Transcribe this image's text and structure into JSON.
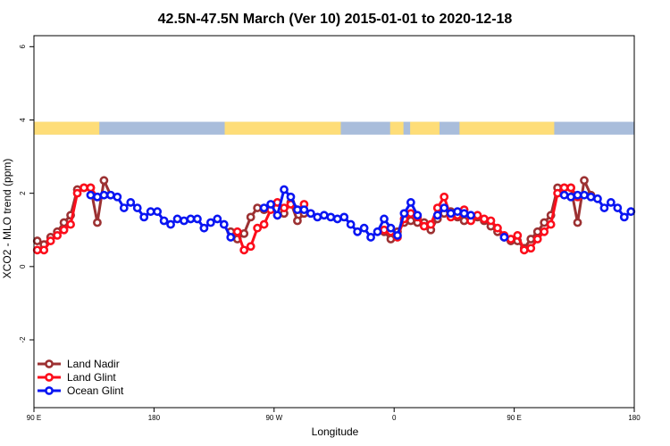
{
  "chart_data": {
    "type": "line",
    "title": "42.5N-47.5N March (Ver 10)   2015-01-01 to 2020-12-18",
    "xlabel": "Longitude",
    "ylabel": "XCO2 - MLO trend (ppm)",
    "xlim": [
      90,
      540
    ],
    "ylim": [
      -3.85,
      6.3
    ],
    "x_ticks": [
      {
        "value": 90,
        "label": "90 E"
      },
      {
        "value": 180,
        "label": "180"
      },
      {
        "value": 270,
        "label": "90 W"
      },
      {
        "value": 360,
        "label": "0"
      },
      {
        "value": 450,
        "label": "90 E"
      },
      {
        "value": 540,
        "label": "180"
      }
    ],
    "y_ticks": [
      {
        "value": -2,
        "label": "-2"
      },
      {
        "value": 0,
        "label": "0"
      },
      {
        "value": 2,
        "label": "2"
      },
      {
        "value": 4,
        "label": "4"
      },
      {
        "value": 6,
        "label": "6"
      }
    ],
    "land_mask_band": {
      "y_range": [
        3.6,
        3.95
      ],
      "land_color": "#fedd78",
      "ocean_color": "#a9bddb",
      "land_segments": [
        [
          90,
          139
        ],
        [
          233,
          320
        ],
        [
          357,
          367
        ],
        [
          372,
          394
        ],
        [
          409,
          480
        ]
      ]
    },
    "legend": {
      "position": "bottom-left",
      "entries": [
        "Land Nadir",
        "Land Glint",
        "Ocean Glint"
      ]
    },
    "series": [
      {
        "name": "Land Nadir",
        "color": "#9c3132",
        "points": [
          [
            92.5,
            0.7
          ],
          [
            97.5,
            0.6
          ],
          [
            102.5,
            0.8
          ],
          [
            107.5,
            0.95
          ],
          [
            112.5,
            1.2
          ],
          [
            117.5,
            1.4
          ],
          [
            122.5,
            2.1
          ],
          [
            127.5,
            2.15
          ],
          [
            132.5,
            2.15
          ],
          [
            137.5,
            1.2
          ],
          [
            142.5,
            2.35
          ],
          [
            147.5,
            1.95
          ],
          [
            237.5,
            0.95
          ],
          [
            242.5,
            0.75
          ],
          [
            247.5,
            0.9
          ],
          [
            252.5,
            1.35
          ],
          [
            257.5,
            1.6
          ],
          [
            262.5,
            1.55
          ],
          [
            267.5,
            1.65
          ],
          [
            272.5,
            1.4
          ],
          [
            277.5,
            1.45
          ],
          [
            282.5,
            1.75
          ],
          [
            287.5,
            1.25
          ],
          [
            292.5,
            1.45
          ],
          [
            352.5,
            0.95
          ],
          [
            357.5,
            0.75
          ],
          [
            362.5,
            0.95
          ],
          [
            367.5,
            1.2
          ],
          [
            372.5,
            1.25
          ],
          [
            377.5,
            1.2
          ],
          [
            382.5,
            1.2
          ],
          [
            387.5,
            1.0
          ],
          [
            392.5,
            1.3
          ],
          [
            397.5,
            1.45
          ],
          [
            402.5,
            1.5
          ],
          [
            407.5,
            1.35
          ],
          [
            412.5,
            1.25
          ],
          [
            417.5,
            1.3
          ],
          [
            422.5,
            1.35
          ],
          [
            427.5,
            1.25
          ],
          [
            432.5,
            1.1
          ],
          [
            437.5,
            0.95
          ],
          [
            442.5,
            0.8
          ],
          [
            447.5,
            0.7
          ],
          [
            452.5,
            0.7
          ],
          [
            457.5,
            0.5
          ],
          [
            462.5,
            0.75
          ],
          [
            467.5,
            0.95
          ],
          [
            472.5,
            1.2
          ],
          [
            477.5,
            1.4
          ],
          [
            482.5,
            2.15
          ],
          [
            487.5,
            2.15
          ],
          [
            492.5,
            2.15
          ],
          [
            497.5,
            1.2
          ],
          [
            502.5,
            2.35
          ],
          [
            507.5,
            1.95
          ]
        ]
      },
      {
        "name": "Land Glint",
        "color": "#fc0d1b",
        "points": [
          [
            92.5,
            0.45
          ],
          [
            97.5,
            0.45
          ],
          [
            102.5,
            0.7
          ],
          [
            107.5,
            0.85
          ],
          [
            112.5,
            1.0
          ],
          [
            117.5,
            1.15
          ],
          [
            122.5,
            2.0
          ],
          [
            127.5,
            2.15
          ],
          [
            132.5,
            2.15
          ],
          [
            137.5,
            1.9
          ],
          [
            242.5,
            0.95
          ],
          [
            247.5,
            0.45
          ],
          [
            252.5,
            0.55
          ],
          [
            257.5,
            1.05
          ],
          [
            262.5,
            1.15
          ],
          [
            267.5,
            1.55
          ],
          [
            272.5,
            1.75
          ],
          [
            277.5,
            1.6
          ],
          [
            282.5,
            1.7
          ],
          [
            287.5,
            1.55
          ],
          [
            292.5,
            1.7
          ],
          [
            352.5,
            1.0
          ],
          [
            357.5,
            0.95
          ],
          [
            362.5,
            0.8
          ],
          [
            367.5,
            1.3
          ],
          [
            372.5,
            1.45
          ],
          [
            377.5,
            1.35
          ],
          [
            382.5,
            1.1
          ],
          [
            387.5,
            1.15
          ],
          [
            392.5,
            1.6
          ],
          [
            397.5,
            1.9
          ],
          [
            402.5,
            1.35
          ],
          [
            407.5,
            1.4
          ],
          [
            412.5,
            1.55
          ],
          [
            417.5,
            1.25
          ],
          [
            422.5,
            1.4
          ],
          [
            427.5,
            1.3
          ],
          [
            432.5,
            1.25
          ],
          [
            437.5,
            1.05
          ],
          [
            442.5,
            0.85
          ],
          [
            447.5,
            0.75
          ],
          [
            452.5,
            0.85
          ],
          [
            457.5,
            0.45
          ],
          [
            462.5,
            0.5
          ],
          [
            467.5,
            0.75
          ],
          [
            472.5,
            0.95
          ],
          [
            477.5,
            1.15
          ],
          [
            482.5,
            2.0
          ],
          [
            487.5,
            2.15
          ],
          [
            492.5,
            2.15
          ],
          [
            497.5,
            1.9
          ]
        ]
      },
      {
        "name": "Ocean Glint",
        "color": "#0915f2",
        "points": [
          [
            132.5,
            1.95
          ],
          [
            137.5,
            1.9
          ],
          [
            142.5,
            1.95
          ],
          [
            147.5,
            1.95
          ],
          [
            152.5,
            1.9
          ],
          [
            157.5,
            1.6
          ],
          [
            162.5,
            1.75
          ],
          [
            167.5,
            1.6
          ],
          [
            172.5,
            1.35
          ],
          [
            177.5,
            1.5
          ],
          [
            182.5,
            1.5
          ],
          [
            187.5,
            1.25
          ],
          [
            192.5,
            1.15
          ],
          [
            197.5,
            1.3
          ],
          [
            202.5,
            1.25
          ],
          [
            207.5,
            1.3
          ],
          [
            212.5,
            1.3
          ],
          [
            217.5,
            1.05
          ],
          [
            222.5,
            1.2
          ],
          [
            227.5,
            1.3
          ],
          [
            232.5,
            1.15
          ],
          [
            237.5,
            0.8
          ],
          [
            262.5,
            1.6
          ],
          [
            267.5,
            1.7
          ],
          [
            272.5,
            1.4
          ],
          [
            277.5,
            2.1
          ],
          [
            282.5,
            1.9
          ],
          [
            287.5,
            1.55
          ],
          [
            292.5,
            1.55
          ],
          [
            297.5,
            1.45
          ],
          [
            302.5,
            1.35
          ],
          [
            307.5,
            1.4
          ],
          [
            312.5,
            1.35
          ],
          [
            317.5,
            1.3
          ],
          [
            322.5,
            1.35
          ],
          [
            327.5,
            1.15
          ],
          [
            332.5,
            0.95
          ],
          [
            337.5,
            1.05
          ],
          [
            342.5,
            0.8
          ],
          [
            347.5,
            0.95
          ],
          [
            352.5,
            1.3
          ],
          [
            357.5,
            1.05
          ],
          [
            362.5,
            0.85
          ],
          [
            367.5,
            1.45
          ],
          [
            372.5,
            1.75
          ],
          [
            377.5,
            1.4
          ],
          [
            392.5,
            1.4
          ],
          [
            397.5,
            1.6
          ],
          [
            402.5,
            1.45
          ],
          [
            407.5,
            1.5
          ],
          [
            412.5,
            1.45
          ],
          [
            417.5,
            1.4
          ],
          [
            442.5,
            0.8
          ],
          [
            487.5,
            1.95
          ],
          [
            492.5,
            1.9
          ],
          [
            497.5,
            1.95
          ],
          [
            502.5,
            1.95
          ],
          [
            507.5,
            1.9
          ],
          [
            512.5,
            1.85
          ],
          [
            517.5,
            1.6
          ],
          [
            522.5,
            1.75
          ],
          [
            527.5,
            1.6
          ],
          [
            532.5,
            1.35
          ],
          [
            537.5,
            1.5
          ]
        ]
      }
    ]
  }
}
